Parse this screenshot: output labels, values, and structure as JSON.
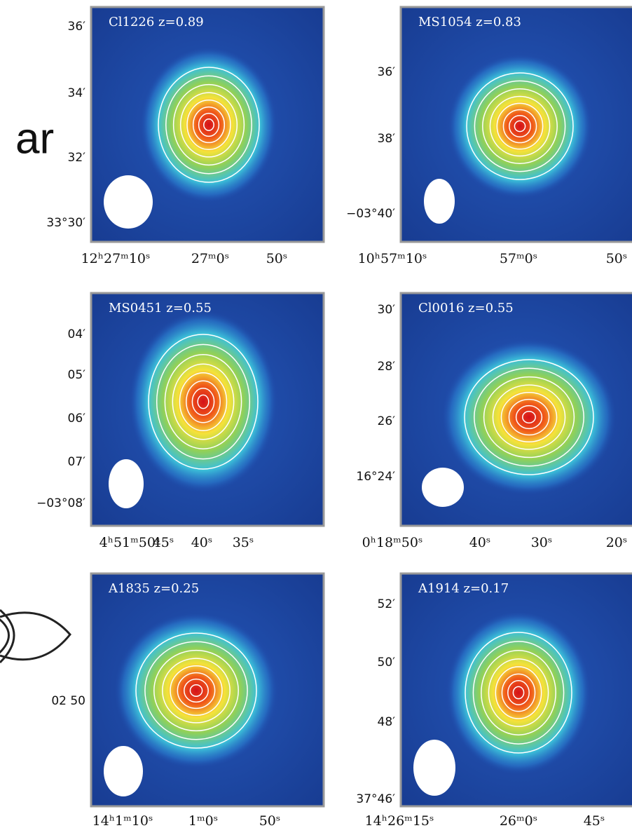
{
  "slide_fragment": "ar",
  "panels": [
    {
      "title": "Cl1226  z=0.89",
      "y_labels": [
        "36′",
        "34′",
        "32′",
        "33°30′"
      ],
      "x_labels": [
        "12ʰ27ᵐ10ˢ",
        "27ᵐ0ˢ",
        "50ˢ"
      ]
    },
    {
      "title": "MS1054  z=0.83",
      "y_labels": [
        "36′",
        "38′",
        "−03°40′"
      ],
      "x_labels": [
        "10ʰ57ᵐ10ˢ",
        "57ᵐ0ˢ",
        "50ˢ"
      ]
    },
    {
      "title": "MS0451  z=0.55",
      "y_labels": [
        "04′",
        "05′",
        "06′",
        "07′",
        "−03°08′"
      ],
      "x_labels": [
        "4ʰ51ᵐ50ˢ",
        "45ˢ",
        "40ˢ",
        "35ˢ"
      ]
    },
    {
      "title": "Cl0016  z=0.55",
      "y_labels": [
        "30′",
        "28′",
        "26′",
        "16°24′"
      ],
      "x_labels": [
        "0ʰ18ᵐ50ˢ",
        "40ˢ",
        "30ˢ",
        "20ˢ"
      ]
    },
    {
      "title": "A1835  z=0.25",
      "y_labels": [
        "02 50"
      ],
      "x_labels": [
        "14ʰ1ᵐ10ˢ",
        "1ᵐ0ˢ",
        "50ˢ"
      ]
    },
    {
      "title": "A1914  z=0.17",
      "y_labels": [
        "52′",
        "50′",
        "48′",
        "37°46′"
      ],
      "x_labels": [
        "14ʰ26ᵐ15ˢ",
        "26ᵐ0ˢ",
        "45ˢ"
      ]
    }
  ]
}
